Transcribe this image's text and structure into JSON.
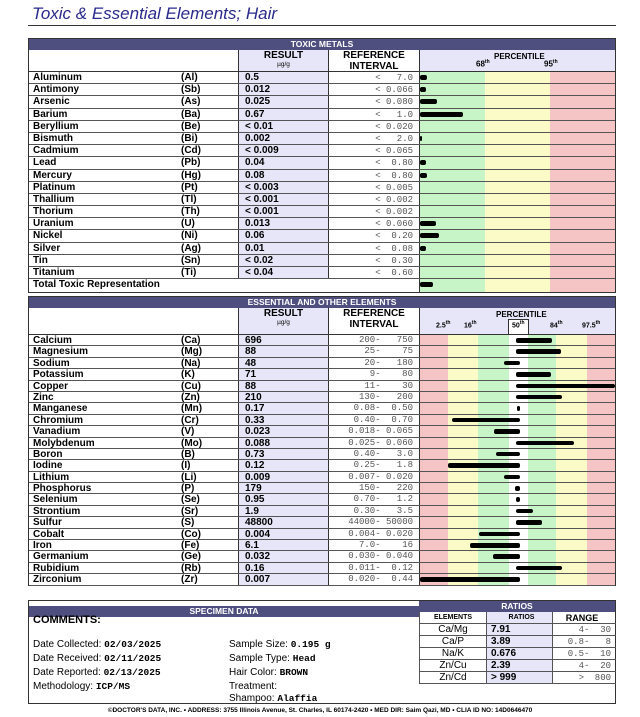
{
  "title": "Toxic & Essential Elements; Hair",
  "colors": {
    "header": "#4e4f7e",
    "result_bg": "#e6e6f8",
    "green": "#c8f5c8",
    "yellow": "#fbfbc8",
    "red": "#f5c4c4"
  },
  "toxic": {
    "header": "TOXIC METALS",
    "result_label": "RESULT",
    "unit": "µg/g",
    "ref_label1": "REFERENCE",
    "ref_label2": "INTERVAL",
    "percentile_label": "PERCENTILE",
    "p1": "68",
    "p2": "95",
    "rows": [
      {
        "name": "Aluminum",
        "sym": "(Al)",
        "result": "0.5",
        "ref": "<   7.0",
        "bar": 0.037
      },
      {
        "name": "Antimony",
        "sym": "(Sb)",
        "result": "0.012",
        "ref": "< 0.066",
        "bar": 0.029
      },
      {
        "name": "Arsenic",
        "sym": "(As)",
        "result": "0.025",
        "ref": "< 0.080",
        "bar": 0.087
      },
      {
        "name": "Barium",
        "sym": "(Ba)",
        "result": "0.67",
        "ref": "<   1.0",
        "bar": 0.223
      },
      {
        "name": "Beryllium",
        "sym": "(Be)",
        "result": "< 0.01",
        "ref": "< 0.020",
        "bar": 0
      },
      {
        "name": "Bismuth",
        "sym": "(Bi)",
        "result": "0.002",
        "ref": "<   2.0",
        "bar": 0.012
      },
      {
        "name": "Cadmium",
        "sym": "(Cd)",
        "result": "< 0.009",
        "ref": "< 0.065",
        "bar": 0
      },
      {
        "name": "Lead",
        "sym": "(Pb)",
        "result": "0.04",
        "ref": "<  0.80",
        "bar": 0.029
      },
      {
        "name": "Mercury",
        "sym": "(Hg)",
        "result": "0.08",
        "ref": "<  0.80",
        "bar": 0.037
      },
      {
        "name": "Platinum",
        "sym": "(Pt)",
        "result": "< 0.003",
        "ref": "< 0.005",
        "bar": 0
      },
      {
        "name": "Thallium",
        "sym": "(Tl)",
        "result": "< 0.001",
        "ref": "< 0.002",
        "bar": 0
      },
      {
        "name": "Thorium",
        "sym": "(Th)",
        "result": "< 0.001",
        "ref": "< 0.002",
        "bar": 0
      },
      {
        "name": "Uranium",
        "sym": "(U)",
        "result": "0.013",
        "ref": "< 0.060",
        "bar": 0.082
      },
      {
        "name": "Nickel",
        "sym": "(Ni)",
        "result": "0.06",
        "ref": "<  0.20",
        "bar": 0.099
      },
      {
        "name": "Silver",
        "sym": "(Ag)",
        "result": "0.01",
        "ref": "<  0.08",
        "bar": 0.029
      },
      {
        "name": "Tin",
        "sym": "(Sn)",
        "result": "< 0.02",
        "ref": "<  0.30",
        "bar": 0
      },
      {
        "name": "Titanium",
        "sym": "(Ti)",
        "result": "< 0.04",
        "ref": "<  0.60",
        "bar": 0
      }
    ],
    "total_label": "Total Toxic Representation",
    "total_bar": 0.066
  },
  "essential": {
    "header": "ESSENTIAL AND OTHER ELEMENTS",
    "result_label": "RESULT",
    "unit": "µg/g",
    "ref_label1": "REFERENCE",
    "ref_label2": "INTERVAL",
    "percentile_label": "PERCENTILE",
    "ticks": [
      "2.5",
      "16",
      "50",
      "84",
      "97.5"
    ],
    "rows": [
      {
        "name": "Calcium",
        "sym": "(Ca)",
        "result": "696",
        "ref": "200-   750",
        "bar": [
          0.49,
          0.676
        ]
      },
      {
        "name": "Magnesium",
        "sym": "(Mg)",
        "result": "88",
        "ref": "25-    75",
        "bar": [
          0.49,
          0.722
        ]
      },
      {
        "name": "Sodium",
        "sym": "(Na)",
        "result": "48",
        "ref": "20-   180",
        "bar": [
          0.433,
          0.511
        ]
      },
      {
        "name": "Potassium",
        "sym": "(K)",
        "result": "71",
        "ref": "9-    80",
        "bar": [
          0.49,
          0.672
        ]
      },
      {
        "name": "Copper",
        "sym": "(Cu)",
        "result": "88",
        "ref": "11-    30",
        "bar": [
          0.49,
          1
        ]
      },
      {
        "name": "Zinc",
        "sym": "(Zn)",
        "result": "210",
        "ref": "130-   200",
        "bar": [
          0.49,
          0.727
        ]
      },
      {
        "name": "Manganese",
        "sym": "(Mn)",
        "result": "0.17",
        "ref": "0.08-  0.50",
        "bar": [
          0.495,
          0.515
        ]
      },
      {
        "name": "Chromium",
        "sym": "(Cr)",
        "result": "0.33",
        "ref": "0.40-  0.70",
        "bar": [
          0.165,
          0.511
        ]
      },
      {
        "name": "Vanadium",
        "sym": "(V)",
        "result": "0.023",
        "ref": "0.018- 0.065",
        "bar": [
          0.377,
          0.511
        ]
      },
      {
        "name": "Molybdenum",
        "sym": "(Mo)",
        "result": "0.088",
        "ref": "0.025- 0.060",
        "bar": [
          0.49,
          0.789
        ]
      },
      {
        "name": "Boron",
        "sym": "(B)",
        "result": "0.73",
        "ref": "0.40-   3.0",
        "bar": [
          0.388,
          0.511
        ]
      },
      {
        "name": "Iodine",
        "sym": "(I)",
        "result": "0.12",
        "ref": "0.25-   1.8",
        "bar": [
          0.144,
          0.511
        ]
      },
      {
        "name": "Lithium",
        "sym": "(Li)",
        "result": "0.009",
        "ref": "0.007- 0.020",
        "bar": [
          0.429,
          0.511
        ]
      },
      {
        "name": "Phosphorus",
        "sym": "(P)",
        "result": "179",
        "ref": "150-   220",
        "bar": [
          0.487,
          0.511
        ]
      },
      {
        "name": "Selenium",
        "sym": "(Se)",
        "result": "0.95",
        "ref": "0.70-   1.2",
        "bar": [
          0.49,
          0.511
        ]
      },
      {
        "name": "Strontium",
        "sym": "(Sr)",
        "result": "1.9",
        "ref": "0.30-   3.5",
        "bar": [
          0.49,
          0.581
        ]
      },
      {
        "name": "Sulfur",
        "sym": "(S)",
        "result": "48800",
        "ref": "44000- 50000",
        "bar": [
          0.49,
          0.627
        ]
      },
      {
        "name": "Cobalt",
        "sym": "(Co)",
        "result": "0.004",
        "ref": "0.004- 0.020",
        "bar": [
          0.301,
          0.511
        ]
      },
      {
        "name": "Iron",
        "sym": "(Fe)",
        "result": "6.1",
        "ref": "7.0-    16",
        "bar": [
          0.254,
          0.511
        ]
      },
      {
        "name": "Germanium",
        "sym": "(Ge)",
        "result": "0.032",
        "ref": "0.030- 0.040",
        "bar": [
          0.375,
          0.511
        ]
      },
      {
        "name": "Rubidium",
        "sym": "(Rb)",
        "result": "0.16",
        "ref": "0.011-  0.12",
        "bar": [
          0.49,
          0.727
        ]
      },
      {
        "name": "Zirconium",
        "sym": "(Zr)",
        "result": "0.007",
        "ref": "0.020-  0.44",
        "bar": [
          0,
          0.511
        ]
      }
    ]
  },
  "specimen": {
    "header": "SPECIMEN DATA",
    "comments_label": "COMMENTS:",
    "date_collected_label": "Date Collected:",
    "date_collected": "02/03/2025",
    "date_received_label": "Date Received:",
    "date_received": "02/11/2025",
    "date_reported_label": "Date Reported:",
    "date_reported": "02/13/2025",
    "methodology_label": "Methodology:",
    "methodology": "ICP/MS",
    "sample_size_label": "Sample Size:",
    "sample_size": "0.195 g",
    "sample_type_label": "Sample Type:",
    "sample_type": "Head",
    "hair_color_label": "Hair Color:",
    "hair_color": "BROWN",
    "treatment_label": "Treatment:",
    "shampoo_label": "Shampoo:",
    "shampoo": "Alaffia"
  },
  "ratios": {
    "header": "RATIOS",
    "col_elements": "ELEMENTS",
    "col_ratios": "RATIOS",
    "col_range": "RANGE",
    "rows": [
      {
        "el": "Ca/Mg",
        "val": "7.91",
        "range": "4-  30"
      },
      {
        "el": "Ca/P",
        "val": "3.89",
        "range": "0.8-   8"
      },
      {
        "el": "Na/K",
        "val": "0.676",
        "range": "0.5-  10"
      },
      {
        "el": "Zn/Cu",
        "val": "2.39",
        "range": "4-  20"
      },
      {
        "el": "Zn/Cd",
        "val": "> 999",
        "range": ">  800"
      }
    ]
  },
  "footer": "©DOCTOR'S DATA, INC. • ADDRESS: 3755 Illinois Avenue, St. Charles, IL 60174-2420 • MED DIR: Saim Qazi, MD • CLIA ID NO: 14D0646470"
}
